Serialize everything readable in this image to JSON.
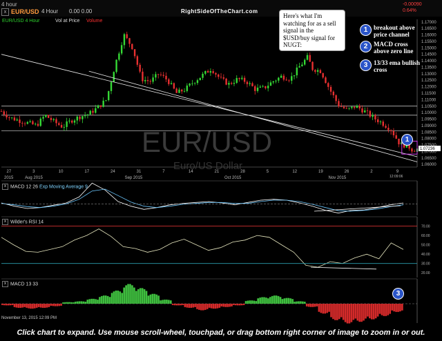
{
  "header": {
    "timeframe_chip": "4 hour",
    "symbol": "EUR/USD",
    "timeframe": "4 Hour",
    "price_readout": "0.00 0.00",
    "site": "RightSideOfTheChart.com",
    "quote_change": "-0.00090",
    "quote_pct": "0.64%"
  },
  "legend": {
    "sma_label": "EUR/USD 4 Hour",
    "vol_label": "Vol at Price",
    "volume_label": "Volume"
  },
  "watermark": {
    "symbol": "EUR/USD",
    "name": "Euro/US Dollar"
  },
  "annotation": {
    "intro": "Here's what I'm watching for as a sell signal in the $USD/buy signal for NUGT:",
    "items": [
      {
        "num": "1",
        "text": "breakout above price channel"
      },
      {
        "num": "2",
        "text": "MACD cross above zero line"
      },
      {
        "num": "3",
        "text": "13/33 ema bullish cross"
      }
    ],
    "chart_marker_1": "1",
    "chart_marker_3": "3"
  },
  "indicators": {
    "macd_label": "MACD 12 26",
    "macd_ema_label": "Exp Moving Average 9",
    "rsi_label": "Wilder's RSI 14",
    "macd2_label": "MACD 13 33",
    "box_x": "x"
  },
  "footer": {
    "timestamp": "November 13, 2015 12:09 PM",
    "caption": "Click chart to expand. Use mouse scroll-wheel, touchpad, or drag bottom right corner of image to zoom in or out.",
    "last_time": "12:09:06"
  },
  "chart_data": [
    {
      "type": "candlestick",
      "title": "EUR/USD 4 Hour",
      "x_labels": [
        "27",
        "3",
        "10",
        "17",
        "24",
        "31",
        "7",
        "14",
        "21",
        "28",
        "5",
        "12",
        "19",
        "26",
        "2",
        "9"
      ],
      "x_month_labels": [
        "2015",
        "Aug 2015",
        "Sep 2015",
        "Oct 2015",
        "Nov 2015"
      ],
      "y_ticks": [
        "1.17000",
        "1.16500",
        "1.16000",
        "1.15500",
        "1.15000",
        "1.14500",
        "1.14000",
        "1.13500",
        "1.13000",
        "1.12500",
        "1.12000",
        "1.11500",
        "1.11000",
        "1.10500",
        "1.10000",
        "1.09500",
        "1.09000",
        "1.08500",
        "1.08000",
        "1.07500",
        "1.07000",
        "1.06500",
        "1.06000"
      ],
      "ylim": [
        1.058,
        1.172
      ],
      "last_price": "1.07236",
      "price_path": [
        [
          0,
          1.101
        ],
        [
          4,
          1.096
        ],
        [
          8,
          1.094
        ],
        [
          12,
          1.092
        ],
        [
          16,
          1.09
        ],
        [
          20,
          1.098
        ],
        [
          24,
          1.093
        ],
        [
          28,
          1.089
        ],
        [
          32,
          1.094
        ],
        [
          36,
          1.097
        ],
        [
          40,
          1.099
        ],
        [
          44,
          1.104
        ],
        [
          48,
          1.11
        ],
        [
          52,
          1.137
        ],
        [
          56,
          1.16
        ],
        [
          60,
          1.15
        ],
        [
          64,
          1.126
        ],
        [
          68,
          1.124
        ],
        [
          72,
          1.13
        ],
        [
          76,
          1.125
        ],
        [
          80,
          1.115
        ],
        [
          84,
          1.118
        ],
        [
          88,
          1.124
        ],
        [
          92,
          1.129
        ],
        [
          96,
          1.134
        ],
        [
          100,
          1.126
        ],
        [
          104,
          1.122
        ],
        [
          108,
          1.126
        ],
        [
          112,
          1.124
        ],
        [
          116,
          1.118
        ],
        [
          120,
          1.119
        ],
        [
          124,
          1.124
        ],
        [
          128,
          1.128
        ],
        [
          132,
          1.126
        ],
        [
          136,
          1.135
        ],
        [
          140,
          1.143
        ],
        [
          142,
          1.134
        ],
        [
          146,
          1.132
        ],
        [
          150,
          1.118
        ],
        [
          154,
          1.106
        ],
        [
          158,
          1.102
        ],
        [
          162,
          1.105
        ],
        [
          166,
          1.101
        ],
        [
          170,
          1.096
        ],
        [
          174,
          1.092
        ],
        [
          178,
          1.087
        ],
        [
          182,
          1.076
        ],
        [
          186,
          1.074
        ],
        [
          188,
          1.071
        ],
        [
          190,
          1.072
        ]
      ],
      "horizontal_levels": [
        1.105,
        1.098,
        1.086
      ],
      "price_channel": {
        "upper": [
          [
            1.145,
            0
          ],
          [
            1.066,
            190
          ]
        ],
        "lower": [
          [
            1.132,
            40
          ],
          [
            1.062,
            190
          ]
        ]
      }
    },
    {
      "type": "line",
      "title": "MACD 12 26",
      "series": [
        {
          "name": "MACD 12 26",
          "values": [
            0.2,
            -0.5,
            -1,
            -0.8,
            -0.3,
            0.2,
            1.5,
            4.5,
            3,
            0.5,
            -0.5,
            -1.2,
            -0.8,
            -0.2,
            0.1,
            0.3,
            0.5,
            0.2,
            -0.2,
            0.3,
            0.8,
            1.0,
            0.8,
            0.2,
            -0.5,
            -1.4,
            -2.0,
            -1.4,
            -1.3,
            -0.8,
            -0.2,
            0.2
          ]
        },
        {
          "name": "Exp Moving Average 9",
          "values": [
            0.1,
            -0.2,
            -0.6,
            -0.8,
            -0.5,
            0,
            1,
            2.8,
            3.2,
            1.8,
            0.4,
            -0.5,
            -0.8,
            -0.5,
            -0.1,
            0.1,
            0.3,
            0.3,
            0.1,
            0.1,
            0.5,
            0.8,
            0.8,
            0.5,
            -0.1,
            -0.8,
            -1.5,
            -1.6,
            -1.4,
            -1.1,
            -0.6,
            -0.2
          ]
        }
      ]
    },
    {
      "type": "line",
      "title": "Wilder's RSI 14",
      "y_ticks": [
        "70.00",
        "60.00",
        "50.00",
        "40.00",
        "30.00",
        "20.00"
      ],
      "levels": [
        70,
        30
      ],
      "series": [
        {
          "name": "Wilder's RSI 14",
          "values": [
            58,
            50,
            43,
            42,
            45,
            48,
            55,
            60,
            67,
            59,
            48,
            46,
            42,
            45,
            52,
            56,
            50,
            44,
            47,
            53,
            55,
            60,
            58,
            50,
            42,
            28,
            26,
            32,
            30,
            36,
            40,
            35,
            52,
            45
          ]
        }
      ]
    },
    {
      "type": "bar",
      "title": "MACD 13 33",
      "values": [
        -0.2,
        -0.5,
        -0.6,
        -0.5,
        -0.3,
        0.2,
        0.3,
        0.6,
        1.0,
        1.6,
        2.4,
        1.9,
        1.2,
        0.5,
        -0.2,
        -0.5,
        -0.8,
        -0.6,
        -0.4,
        -0.2,
        0.4,
        0.8,
        1.0,
        0.7,
        0.3,
        -0.4,
        -1.2,
        -2.0,
        -2.4,
        -2.2,
        -1.9,
        -1.5,
        -1.0
      ]
    }
  ]
}
